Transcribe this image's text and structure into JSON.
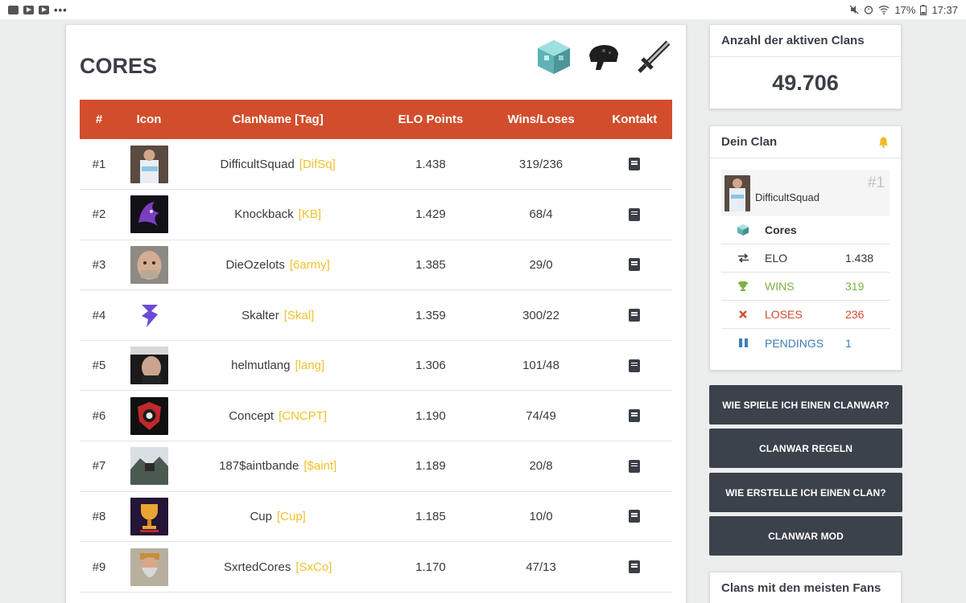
{
  "statusbar": {
    "battery": "17%",
    "time": "17:37"
  },
  "main": {
    "title": "CORES",
    "columns": [
      "#",
      "Icon",
      "ClanName [Tag]",
      "ELO Points",
      "Wins/Loses",
      "Kontakt"
    ],
    "rows": [
      {
        "rank": "#1",
        "name": "DifficultSquad",
        "tag": "[DifSq]",
        "elo": "1.438",
        "wl": "319/236"
      },
      {
        "rank": "#2",
        "name": "Knockback",
        "tag": "[KB]",
        "elo": "1.429",
        "wl": "68/4"
      },
      {
        "rank": "#3",
        "name": "DieOzelots",
        "tag": "[6army]",
        "elo": "1.385",
        "wl": "29/0"
      },
      {
        "rank": "#4",
        "name": "Skalter",
        "tag": "[Skal]",
        "elo": "1.359",
        "wl": "300/22"
      },
      {
        "rank": "#5",
        "name": "helmutlang",
        "tag": "[lang]",
        "elo": "1.306",
        "wl": "101/48"
      },
      {
        "rank": "#6",
        "name": "Concept",
        "tag": "[CNCPT]",
        "elo": "1.190",
        "wl": "74/49"
      },
      {
        "rank": "#7",
        "name": "187$aintbande",
        "tag": "[$aint]",
        "elo": "1.189",
        "wl": "20/8"
      },
      {
        "rank": "#8",
        "name": "Cup",
        "tag": "[Cup]",
        "elo": "1.185",
        "wl": "10/0"
      },
      {
        "rank": "#9",
        "name": "SxrtedCores",
        "tag": "[SxCo]",
        "elo": "1.170",
        "wl": "47/13"
      }
    ]
  },
  "active": {
    "title": "Anzahl der aktiven Clans",
    "count": "49.706"
  },
  "myclan": {
    "title": "Dein Clan",
    "name": "DifficultSquad",
    "rank": "#1",
    "mode": "Cores",
    "elo_label": "ELO",
    "elo": "1.438",
    "wins_label": "WINS",
    "wins": "319",
    "loses_label": "LOSES",
    "loses": "236",
    "pend_label": "PENDINGS",
    "pend": "1"
  },
  "buttons": [
    "WIE SPIELE ICH EINEN CLANWAR?",
    "CLANWAR REGELN",
    "WIE ERSTELLE ICH EINEN CLAN?",
    "CLANWAR MOD"
  ],
  "fans": {
    "title": "Clans mit den meisten Fans"
  },
  "colors": {
    "header": "#d24d2c",
    "tag": "#f2c12e",
    "wins": "#7cb342",
    "loses": "#d24d2c",
    "pend": "#3d7eb8",
    "button": "#3b424c"
  }
}
